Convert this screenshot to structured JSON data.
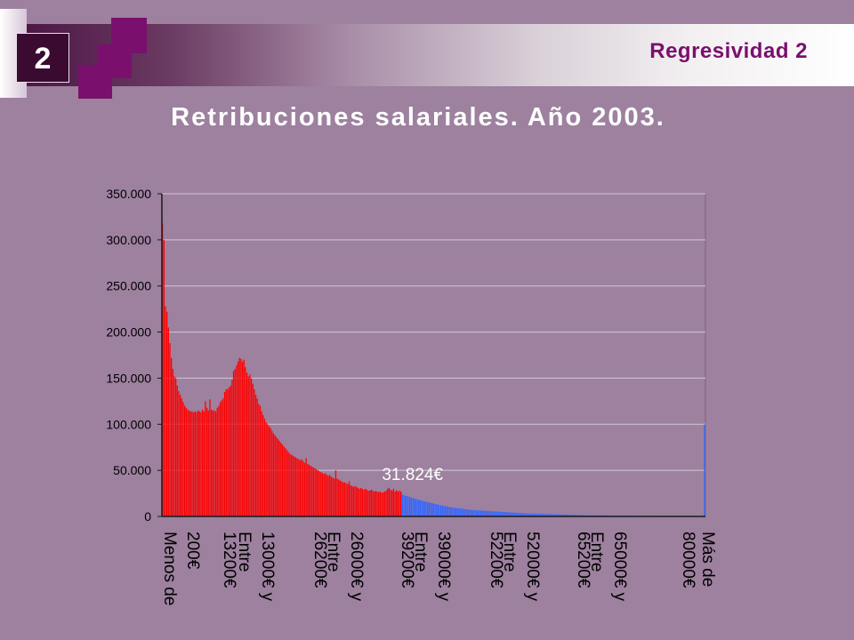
{
  "header": {
    "number": "2",
    "title": "Regresividad 2"
  },
  "colors": {
    "background": "#9d819f",
    "accent": "#7a0f6e",
    "series_red": "#ff0000",
    "series_blue": "#3366ff"
  },
  "chart_data": {
    "type": "bar",
    "title": "Retribuciones salariales. Año 2003.",
    "xlabel": "",
    "ylabel": "",
    "ylim": [
      0,
      350000
    ],
    "yticks": [
      0,
      50000,
      100000,
      150000,
      200000,
      250000,
      300000,
      350000
    ],
    "ytick_labels": [
      "0",
      "50.000",
      "100.000",
      "150.000",
      "200.000",
      "250.000",
      "300.000",
      "350.000"
    ],
    "grid": true,
    "legend": "none",
    "x_label_groups": [
      [
        "Menos de",
        "200€"
      ],
      [
        "13200€"
      ],
      [
        "Entre",
        "13000€ y"
      ],
      [
        "26200€"
      ],
      [
        "Entre",
        "26000€ y"
      ],
      [
        "39200€"
      ],
      [
        "Entre",
        "39000€ y"
      ],
      [
        "52200€"
      ],
      [
        "Entre",
        "52000€ y"
      ],
      [
        "65200€"
      ],
      [
        "Entre",
        "65000€ y"
      ],
      [
        "80000€"
      ],
      [
        "Más de"
      ]
    ],
    "annotation": "31.824€",
    "annotation_index": 162,
    "highlight_index": 162,
    "values": [
      318000,
      300000,
      228000,
      222000,
      205000,
      188000,
      172000,
      160000,
      152000,
      150000,
      142000,
      136000,
      132000,
      128000,
      124000,
      120000,
      118000,
      116000,
      115000,
      114000,
      114000,
      113000,
      114000,
      113000,
      115000,
      114000,
      113000,
      116000,
      114000,
      125000,
      118000,
      115000,
      127000,
      116000,
      115000,
      115000,
      114000,
      118000,
      120000,
      124000,
      126000,
      128000,
      135000,
      138000,
      138000,
      140000,
      142000,
      148000,
      158000,
      160000,
      164000,
      168000,
      172000,
      171000,
      168000,
      170000,
      162000,
      156000,
      152000,
      154000,
      150000,
      144000,
      138000,
      132000,
      128000,
      122000,
      120000,
      114000,
      110000,
      106000,
      102000,
      100000,
      98000,
      96000,
      93000,
      90000,
      88000,
      86000,
      84000,
      82000,
      80000,
      78000,
      76000,
      74000,
      72000,
      70000,
      68000,
      67000,
      66000,
      65000,
      64000,
      63000,
      62000,
      61000,
      62000,
      60000,
      58000,
      63000,
      57000,
      56000,
      55000,
      54000,
      53000,
      52000,
      51000,
      50000,
      49000,
      48000,
      47000,
      46000,
      47000,
      45000,
      44000,
      45000,
      43000,
      42000,
      41000,
      50000,
      41000,
      40000,
      39000,
      38000,
      37000,
      37000,
      36000,
      35000,
      38000,
      34000,
      33000,
      32000,
      33000,
      32000,
      31000,
      30000,
      31000,
      30000,
      29000,
      30000,
      29000,
      28000,
      28000,
      29000,
      28000,
      27000,
      27500,
      27000,
      26500,
      27000,
      26000,
      26000,
      27000,
      28000,
      30000,
      31000,
      29000,
      28000,
      30000,
      27000,
      28500,
      27000,
      28000,
      27000,
      24000,
      23000,
      22500,
      22000,
      21500,
      21000,
      20500,
      20000,
      19500,
      19000,
      18500,
      18000,
      17600,
      17200,
      16800,
      16400,
      16000,
      15600,
      15200,
      14800,
      14400,
      14000,
      13600,
      13200,
      12800,
      12400,
      12100,
      11800,
      11500,
      11200,
      10900,
      10600,
      10300,
      10000,
      9700,
      9400,
      9200,
      9000,
      8800,
      8600,
      8400,
      8200,
      8000,
      7800,
      7600,
      7400,
      7200,
      7000,
      6900,
      6800,
      6700,
      6600,
      6500,
      6400,
      6300,
      6200,
      6100,
      6000,
      5900,
      5800,
      5700,
      5600,
      5500,
      5400,
      5300,
      5200,
      5100,
      5000,
      4900,
      4800,
      4700,
      4600,
      4500,
      4400,
      4300,
      4200,
      4100,
      4000,
      3900,
      3800,
      3700,
      3600,
      3500,
      3400,
      3300,
      3300,
      3200,
      3200,
      3100,
      3100,
      3000,
      3000,
      2900,
      2900,
      2800,
      2800,
      2700,
      2700,
      2600,
      2600,
      2500,
      2500,
      2400,
      2400,
      2300,
      2300,
      2200,
      2200,
      2100,
      2100,
      2000,
      2000,
      1950,
      1900,
      1850,
      1800,
      1750,
      1700,
      1650,
      1600,
      1550,
      1500,
      1450,
      1400,
      1380,
      1360,
      1340,
      1320,
      1300,
      1280,
      1260,
      1240,
      1220,
      1200,
      1180,
      1160,
      1140,
      1120,
      1100,
      1080,
      1060,
      1040,
      1020,
      1000,
      980,
      960,
      940,
      920,
      900,
      880,
      860,
      840,
      820,
      800,
      780,
      760,
      740,
      720,
      700,
      680,
      660,
      640,
      620,
      600,
      580,
      560,
      540,
      520,
      500,
      480,
      460,
      440,
      420,
      400,
      390,
      380,
      370,
      360,
      350,
      340,
      330,
      320,
      310,
      300,
      290,
      280,
      270,
      260,
      250,
      240,
      230,
      220,
      210,
      200,
      190,
      180,
      170,
      160,
      150,
      140,
      130,
      120,
      110,
      100,
      100000
    ]
  }
}
